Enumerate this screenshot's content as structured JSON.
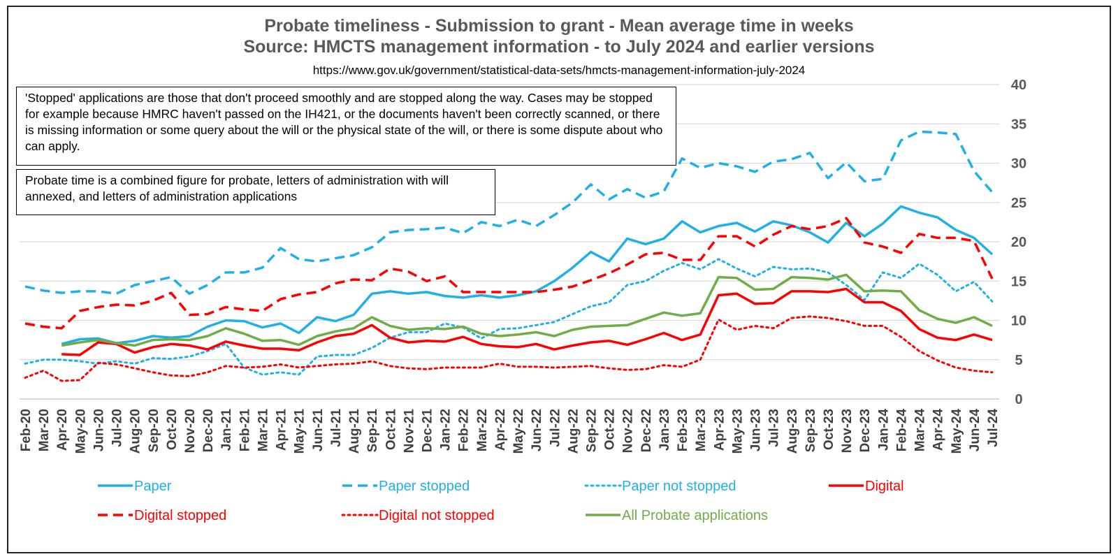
{
  "title_line1": "Probate timeliness - Submission to grant - Mean average time in weeks",
  "title_line2": "Source: HMCTS management information - to July 2024 and earlier versions",
  "url": "https://www.gov.uk/government/statistical-data-sets/hmcts-management-information-july-2024",
  "note1": "'Stopped' applications are those that don't proceed smoothly and are stopped along the way. Cases may be stopped for example because HMRC haven't passed on the IH421, or the documents haven't been correctly scanned, or there is missing information or some query about the will or the physical state of the will, or there is some dispute about who can apply.",
  "note2": "Probate time is a combined figure for probate, letters of administration with will annexed, and letters of administration applications",
  "chart_data": {
    "type": "line",
    "ylim": [
      0,
      40
    ],
    "yticks": [
      0,
      5,
      10,
      15,
      20,
      25,
      30,
      35,
      40
    ],
    "y_axis_side": "right",
    "grid": true,
    "legend_position": "bottom",
    "categories": [
      "Feb-20",
      "Mar-20",
      "Apr-20",
      "May-20",
      "Jun-20",
      "Jul-20",
      "Aug-20",
      "Sep-20",
      "Oct-20",
      "Nov-20",
      "Dec-20",
      "Jan-21",
      "Feb-21",
      "Mar-21",
      "Apr-21",
      "May-21",
      "Jun-21",
      "Jul-21",
      "Aug-21",
      "Sep-21",
      "Oct-21",
      "Nov-21",
      "Dec-21",
      "Jan-22",
      "Feb-22",
      "Mar-22",
      "Apr-22",
      "May-22",
      "Jun-22",
      "Jul-22",
      "Aug-22",
      "Sep-22",
      "Oct-22",
      "Nov-22",
      "Dec-22",
      "Jan-23",
      "Feb-23",
      "Mar-23",
      "Apr-23",
      "May-23",
      "Jun-23",
      "Jul-23",
      "Aug-23",
      "Sep-23",
      "Oct-23",
      "Nov-23",
      "Dec-23",
      "Jan-24",
      "Feb-24",
      "Mar-24",
      "Apr-24",
      "May-24",
      "Jun-24",
      "Jul-24"
    ],
    "series": [
      {
        "name": "Paper",
        "color": "#1FB0E8",
        "dash": "solid",
        "values": [
          null,
          null,
          7.0,
          7.6,
          7.7,
          7.1,
          7.4,
          8.0,
          7.8,
          8.0,
          9.2,
          10.0,
          9.9,
          9.1,
          9.6,
          8.4,
          10.4,
          9.9,
          10.7,
          13.4,
          13.7,
          13.4,
          13.6,
          13.1,
          12.9,
          13.2,
          12.9,
          13.2,
          13.7,
          15.0,
          16.7,
          18.7,
          17.5,
          20.4,
          19.7,
          20.4,
          22.6,
          21.2,
          22.0,
          22.4,
          21.3,
          22.6,
          22.1,
          21.2,
          19.9,
          22.4,
          20.7,
          22.3,
          24.5,
          23.7,
          23.1,
          21.5,
          20.5,
          18.4
        ]
      },
      {
        "name": "Paper stopped",
        "color": "#1FB0E8",
        "dash": "dashed",
        "values": [
          14.3,
          13.8,
          13.5,
          13.7,
          13.7,
          13.4,
          14.5,
          15.0,
          15.5,
          13.4,
          14.5,
          16.1,
          16.1,
          16.7,
          19.2,
          17.8,
          17.5,
          17.9,
          18.3,
          19.3,
          21.2,
          21.5,
          21.6,
          21.8,
          21.1,
          22.5,
          22.0,
          22.8,
          22.0,
          23.4,
          25.0,
          27.3,
          25.4,
          26.7,
          25.6,
          26.4,
          30.6,
          29.4,
          30.0,
          29.6,
          28.9,
          30.2,
          30.5,
          31.3,
          28.1,
          30.1,
          27.7,
          28.0,
          32.9,
          34.0,
          33.9,
          33.7,
          29.0,
          26.3
        ]
      },
      {
        "name": "Paper not stopped",
        "color": "#1FB0E8",
        "dash": "dotted",
        "values": [
          4.5,
          5.0,
          5.0,
          4.8,
          4.5,
          4.8,
          4.5,
          5.2,
          5.1,
          5.4,
          6.1,
          7.0,
          4.0,
          3.1,
          3.4,
          3.1,
          5.4,
          5.6,
          5.6,
          6.5,
          7.8,
          8.5,
          8.5,
          9.6,
          9.1,
          7.7,
          8.9,
          9.0,
          9.4,
          9.8,
          10.8,
          11.8,
          12.3,
          14.5,
          15.0,
          16.3,
          17.3,
          16.5,
          17.8,
          16.6,
          15.6,
          16.8,
          16.5,
          16.6,
          16.1,
          14.5,
          12.6,
          16.1,
          15.4,
          17.2,
          15.8,
          13.7,
          14.9,
          12.4
        ]
      },
      {
        "name": "Digital",
        "color": "#FF0000",
        "dash": "solid",
        "values": [
          null,
          null,
          5.7,
          5.6,
          7.2,
          7.0,
          5.9,
          6.6,
          7.0,
          6.8,
          6.3,
          7.3,
          6.8,
          6.4,
          6.4,
          6.2,
          7.2,
          8.0,
          8.3,
          9.4,
          7.8,
          7.2,
          7.4,
          7.3,
          7.9,
          7.0,
          6.7,
          6.6,
          7.0,
          6.3,
          6.8,
          7.2,
          7.4,
          6.9,
          7.6,
          8.4,
          7.5,
          8.2,
          13.2,
          13.4,
          12.1,
          12.2,
          13.7,
          13.7,
          13.6,
          14.0,
          12.3,
          12.3,
          11.2,
          8.9,
          7.8,
          7.5,
          8.2,
          7.5
        ]
      },
      {
        "name": "Digital stopped",
        "color": "#FF0000",
        "dash": "dashed",
        "values": [
          9.6,
          9.2,
          9.0,
          11.2,
          11.7,
          12.0,
          11.9,
          12.5,
          13.5,
          10.7,
          10.8,
          11.7,
          11.4,
          11.2,
          12.7,
          13.3,
          13.6,
          14.7,
          15.2,
          15.1,
          16.6,
          16.2,
          15.0,
          15.6,
          13.6,
          13.6,
          13.6,
          13.6,
          13.6,
          13.9,
          14.3,
          15.1,
          16.0,
          17.1,
          18.4,
          18.6,
          17.7,
          17.7,
          20.7,
          20.7,
          19.4,
          20.9,
          22.0,
          21.6,
          22.0,
          23.0,
          19.9,
          19.4,
          18.6,
          21.0,
          20.5,
          20.5,
          20.1,
          15.3
        ]
      },
      {
        "name": "Digital not stopped",
        "color": "#FF0000",
        "dash": "dotted",
        "values": [
          2.7,
          3.6,
          2.3,
          2.4,
          4.6,
          4.4,
          3.9,
          3.4,
          3.0,
          2.9,
          3.4,
          4.2,
          4.0,
          4.1,
          4.4,
          4.0,
          4.2,
          4.4,
          4.5,
          4.8,
          4.2,
          3.9,
          3.8,
          4.0,
          4.0,
          4.0,
          4.5,
          4.1,
          4.1,
          4.0,
          4.1,
          4.2,
          3.9,
          3.7,
          3.8,
          4.3,
          4.1,
          5.0,
          10.1,
          8.8,
          9.3,
          9.0,
          10.3,
          10.5,
          10.3,
          9.9,
          9.3,
          9.3,
          7.9,
          6.1,
          4.9,
          4.0,
          3.6,
          3.4
        ]
      },
      {
        "name": "All Probate applications",
        "color": "#70AD47",
        "dash": "solid",
        "values": [
          null,
          null,
          6.8,
          7.2,
          7.5,
          7.1,
          6.8,
          7.5,
          7.6,
          7.5,
          8.0,
          9.0,
          8.3,
          7.4,
          7.5,
          6.9,
          8.0,
          8.6,
          9.0,
          10.4,
          9.3,
          8.8,
          9.0,
          8.9,
          9.2,
          8.3,
          8.0,
          8.2,
          8.5,
          8.0,
          8.8,
          9.2,
          9.3,
          9.4,
          10.2,
          11.0,
          10.6,
          10.9,
          15.5,
          15.4,
          13.9,
          14.0,
          15.5,
          15.4,
          15.2,
          15.8,
          13.7,
          13.8,
          13.7,
          11.3,
          10.2,
          9.7,
          10.4,
          9.3
        ]
      }
    ]
  }
}
